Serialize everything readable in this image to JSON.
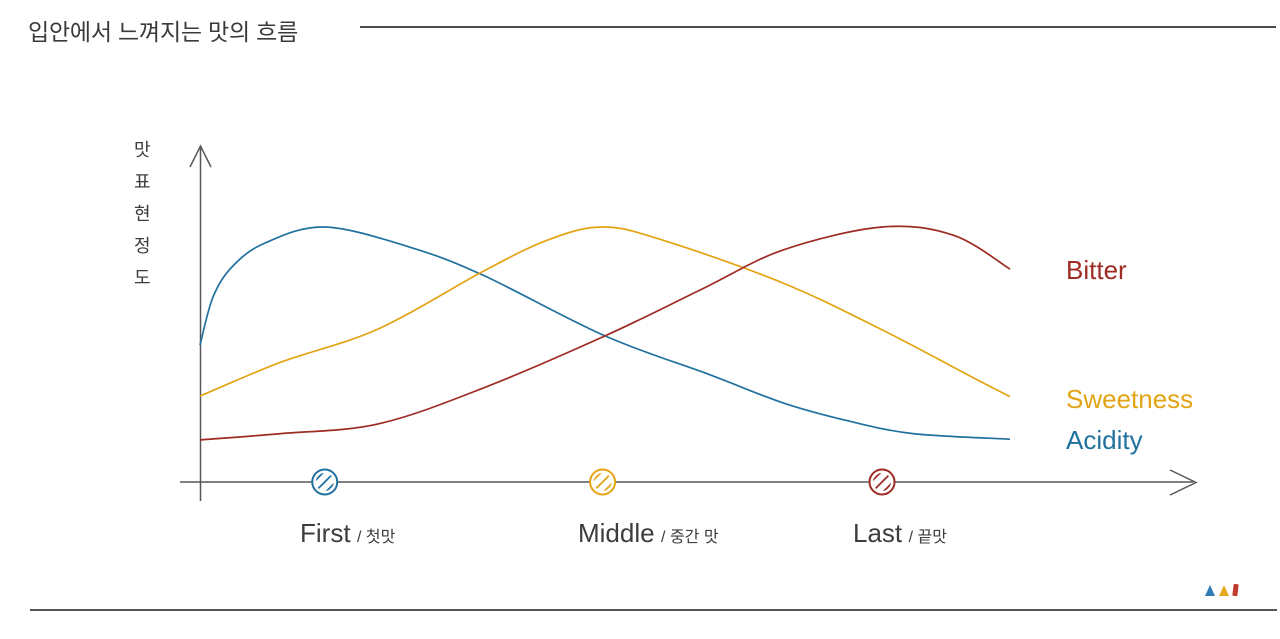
{
  "page": {
    "background": "#ffffff"
  },
  "header": {
    "title": "입안에서 느껴지는 맛의 흐름",
    "title_color": "#3a3a3a",
    "rule_color": "#4b4b4d"
  },
  "chart_data": {
    "type": "line",
    "title": "입안에서 느껴지는 맛의 흐름",
    "xlabel": "",
    "ylabel": "맛 표현 정도",
    "x_range": [
      0,
      1
    ],
    "y_range": [
      0,
      1.05
    ],
    "grid": false,
    "legend_position": "right",
    "axis_color": "#55565a",
    "x_stages": [
      {
        "label_en": "First",
        "label_sub": "/ 첫맛",
        "t": 0.154
      },
      {
        "label_en": "Middle",
        "label_sub": "/ 중간 맛",
        "t": 0.497
      },
      {
        "label_en": "Last",
        "label_sub": "/ 끝맛",
        "t": 0.842
      }
    ],
    "series": [
      {
        "name": "Acidity",
        "color": "#21719f",
        "peak_stage": "First",
        "points": [
          [
            0,
            0.537
          ],
          [
            0.016,
            0.725
          ],
          [
            0.04,
            0.845
          ],
          [
            0.08,
            0.937
          ],
          [
            0.154,
            1.0
          ],
          [
            0.26,
            0.92
          ],
          [
            0.35,
            0.81
          ],
          [
            0.5,
            0.573
          ],
          [
            0.63,
            0.42
          ],
          [
            0.72,
            0.31
          ],
          [
            0.8,
            0.24
          ],
          [
            0.88,
            0.19
          ],
          [
            1,
            0.168
          ]
        ]
      },
      {
        "name": "Sweetness",
        "color": "#e2a414",
        "peak_stage": "Middle",
        "points": [
          [
            0,
            0.337
          ],
          [
            0.1,
            0.47
          ],
          [
            0.22,
            0.6
          ],
          [
            0.35,
            0.827
          ],
          [
            0.43,
            0.95
          ],
          [
            0.497,
            1.0
          ],
          [
            0.57,
            0.95
          ],
          [
            0.72,
            0.78
          ],
          [
            0.84,
            0.6
          ],
          [
            0.96,
            0.4
          ],
          [
            1,
            0.335
          ]
        ]
      },
      {
        "name": "Bitter",
        "color": "#9e2b23",
        "peak_stage": "Last",
        "points": [
          [
            0,
            0.165
          ],
          [
            0.1,
            0.19
          ],
          [
            0.22,
            0.228
          ],
          [
            0.35,
            0.369
          ],
          [
            0.5,
            0.573
          ],
          [
            0.62,
            0.757
          ],
          [
            0.72,
            0.91
          ],
          [
            0.842,
            1.0
          ],
          [
            0.93,
            0.968
          ],
          [
            1,
            0.835
          ]
        ]
      }
    ]
  },
  "footer": {
    "rule_color": "#55565a",
    "logo_colors": {
      "blue": "#2e7bb5",
      "yellow": "#e8a91c",
      "red": "#c0392b"
    }
  }
}
